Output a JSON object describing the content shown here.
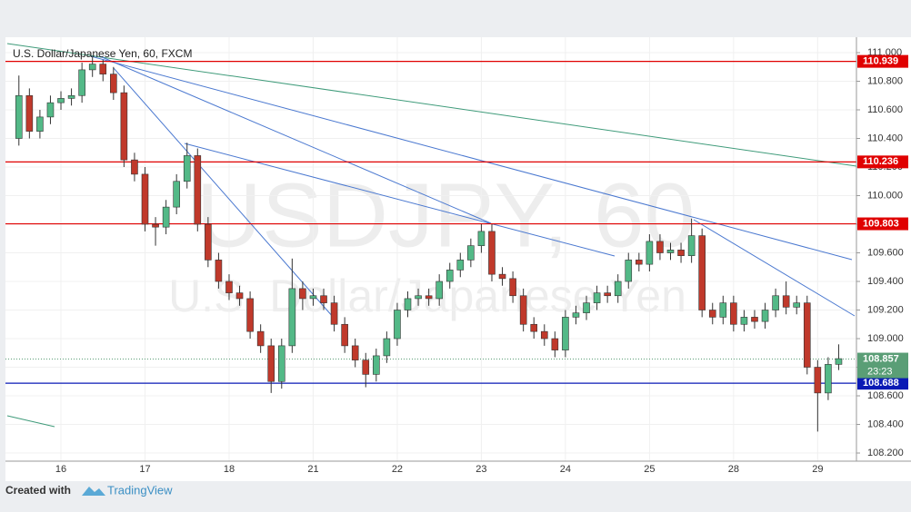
{
  "chart_data": {
    "type": "candlestick",
    "title": "U.S. Dollar/Japanese Yen, 60, FXCM",
    "watermark": "USDJPY, 60",
    "watermark_subtitle": "U.S. Dollar/Japanese Yen",
    "categories": [
      null,
      null,
      null,
      null,
      "16",
      null,
      null,
      null,
      null,
      null,
      null,
      null,
      "17",
      null,
      null,
      null,
      null,
      null,
      null,
      null,
      "18",
      null,
      null,
      null,
      null,
      null,
      null,
      null,
      "21",
      null,
      null,
      null,
      null,
      null,
      null,
      null,
      "22",
      null,
      null,
      null,
      null,
      null,
      null,
      null,
      "23",
      null,
      null,
      null,
      null,
      null,
      null,
      null,
      "24",
      null,
      null,
      null,
      null,
      null,
      null,
      null,
      "25",
      null,
      null,
      null,
      null,
      null,
      null,
      null,
      "28",
      null,
      null,
      null,
      null,
      null,
      null,
      null,
      "29",
      null,
      null
    ],
    "open": [
      110.4,
      110.7,
      110.45,
      110.55,
      110.65,
      110.68,
      110.7,
      110.88,
      110.92,
      110.85,
      110.72,
      110.25,
      110.15,
      109.8,
      109.78,
      109.92,
      110.1,
      110.28,
      109.8,
      109.55,
      109.4,
      109.32,
      109.28,
      109.05,
      108.95,
      108.7,
      108.95,
      109.35,
      109.28,
      109.3,
      109.25,
      109.1,
      108.95,
      108.85,
      108.75,
      108.88,
      109.0,
      109.2,
      109.28,
      109.3,
      109.28,
      109.4,
      109.48,
      109.55,
      109.65,
      109.75,
      109.45,
      109.42,
      109.3,
      109.1,
      109.05,
      109.0,
      108.92,
      109.15,
      109.18,
      109.25,
      109.32,
      109.3,
      109.4,
      109.55,
      109.52,
      109.68,
      109.6,
      109.62,
      109.58,
      109.72,
      109.2,
      109.15,
      109.25,
      109.1,
      109.15,
      109.12,
      109.2,
      109.3,
      109.22,
      109.25,
      108.8,
      108.62,
      108.82
    ],
    "high": [
      110.84,
      110.75,
      110.6,
      110.7,
      110.73,
      110.75,
      110.93,
      110.97,
      110.95,
      110.9,
      110.77,
      110.3,
      110.2,
      109.85,
      109.97,
      110.15,
      110.37,
      110.33,
      109.85,
      109.6,
      109.45,
      109.37,
      109.33,
      109.1,
      109.0,
      109.0,
      109.56,
      109.4,
      109.35,
      109.35,
      109.3,
      109.15,
      109.0,
      108.9,
      108.93,
      109.05,
      109.25,
      109.33,
      109.35,
      109.35,
      109.45,
      109.53,
      109.6,
      109.7,
      109.8,
      109.8,
      109.5,
      109.47,
      109.35,
      109.15,
      109.1,
      109.05,
      109.2,
      109.23,
      109.3,
      109.37,
      109.37,
      109.45,
      109.6,
      109.6,
      109.73,
      109.73,
      109.67,
      109.67,
      109.84,
      109.77,
      109.25,
      109.3,
      109.3,
      109.2,
      109.2,
      109.25,
      109.35,
      109.4,
      109.3,
      109.3,
      108.85,
      108.87,
      108.96
    ],
    "low": [
      110.35,
      110.4,
      110.4,
      110.5,
      110.6,
      110.63,
      110.65,
      110.83,
      110.8,
      110.67,
      110.2,
      110.1,
      109.75,
      109.65,
      109.73,
      109.87,
      110.05,
      109.75,
      109.5,
      109.35,
      109.27,
      109.23,
      109.0,
      108.9,
      108.62,
      108.65,
      108.9,
      109.2,
      109.23,
      109.2,
      109.05,
      108.9,
      108.8,
      108.66,
      108.7,
      108.83,
      108.95,
      109.15,
      109.23,
      109.23,
      109.23,
      109.35,
      109.43,
      109.5,
      109.6,
      109.4,
      109.37,
      109.25,
      109.05,
      109.0,
      108.95,
      108.87,
      108.87,
      109.1,
      109.13,
      109.2,
      109.25,
      109.25,
      109.35,
      109.47,
      109.47,
      109.55,
      109.55,
      109.53,
      109.53,
      109.15,
      109.1,
      109.1,
      109.05,
      109.05,
      109.07,
      109.07,
      109.15,
      109.17,
      109.17,
      108.75,
      108.35,
      108.57,
      108.78
    ],
    "close": [
      110.7,
      110.45,
      110.55,
      110.65,
      110.68,
      110.7,
      110.88,
      110.92,
      110.85,
      110.72,
      110.25,
      110.15,
      109.8,
      109.78,
      109.92,
      110.1,
      110.28,
      109.8,
      109.55,
      109.4,
      109.32,
      109.28,
      109.05,
      108.95,
      108.7,
      108.95,
      109.35,
      109.28,
      109.3,
      109.25,
      109.1,
      108.95,
      108.85,
      108.75,
      108.88,
      109.0,
      109.2,
      109.28,
      109.3,
      109.28,
      109.4,
      109.48,
      109.55,
      109.65,
      109.75,
      109.45,
      109.42,
      109.3,
      109.1,
      109.05,
      109.0,
      108.92,
      109.15,
      109.18,
      109.25,
      109.32,
      109.3,
      109.4,
      109.55,
      109.52,
      109.68,
      109.6,
      109.62,
      109.58,
      109.72,
      109.2,
      109.15,
      109.25,
      109.1,
      109.15,
      109.12,
      109.2,
      109.3,
      109.22,
      109.25,
      108.8,
      108.62,
      108.82,
      108.86
    ],
    "up_color": "#53b987",
    "down_color": "#c0392b",
    "ylim": [
      108.143,
      111.108
    ],
    "yticks": [
      {
        "value": 108.2,
        "label": "108.200"
      },
      {
        "value": 108.4,
        "label": "108.400"
      },
      {
        "value": 108.6,
        "label": "108.600"
      },
      {
        "value": 108.8,
        "label": "108.800"
      },
      {
        "value": 109.0,
        "label": "109.000"
      },
      {
        "value": 109.2,
        "label": "109.200"
      },
      {
        "value": 109.4,
        "label": "109.400"
      },
      {
        "value": 109.6,
        "label": "109.600"
      },
      {
        "value": 109.8,
        "label": "109.800"
      },
      {
        "value": 110.0,
        "label": "110.000"
      },
      {
        "value": 110.2,
        "label": "110.200"
      },
      {
        "value": 110.4,
        "label": "110.400"
      },
      {
        "value": 110.6,
        "label": "110.600"
      },
      {
        "value": 110.8,
        "label": "110.800"
      },
      {
        "value": 111.0,
        "label": "111.000"
      }
    ],
    "levels": [
      {
        "value": 110.939,
        "color": "#e00000"
      },
      {
        "value": 110.236,
        "color": "#e00000"
      },
      {
        "value": 109.803,
        "color": "#e00000"
      },
      {
        "value": 108.688,
        "color": "#0a1ab5"
      }
    ],
    "last_price": 108.857,
    "last_price_color": "#5a9e76",
    "countdown": "23:23"
  },
  "footer": {
    "created_with": "Created with",
    "brand": "TradingView"
  }
}
